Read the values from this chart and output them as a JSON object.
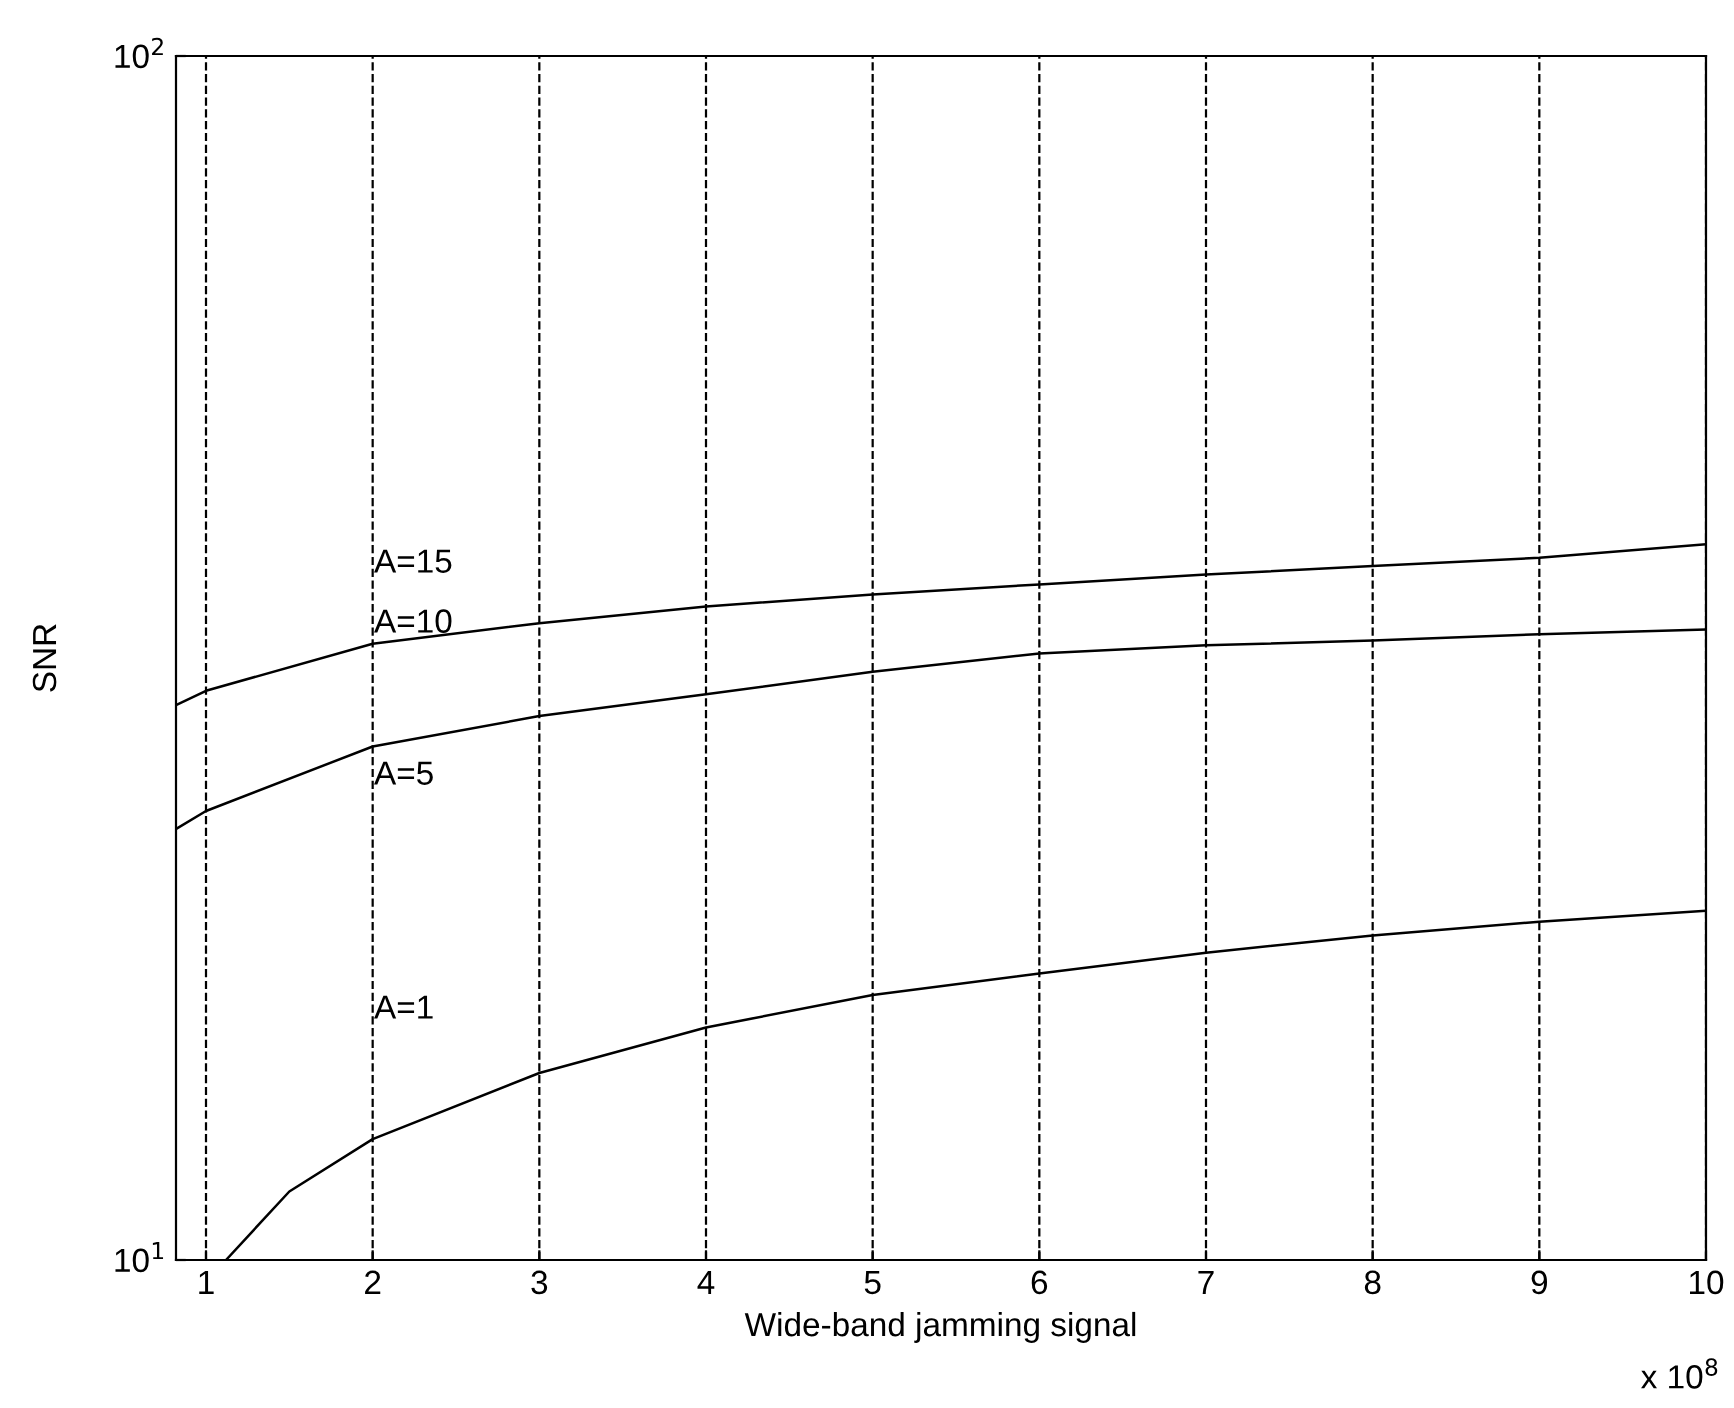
{
  "chart_data": {
    "type": "line",
    "xlabel": "Wide-band jamming signal",
    "ylabel": "SNR",
    "series": [
      {
        "color": "#000000",
        "x": [
          0.82,
          1,
          2,
          3,
          4,
          5,
          6,
          7,
          8,
          9,
          10
        ],
        "values": [
          28.9,
          29.7,
          32.5,
          33.8,
          34.9,
          35.7,
          36.4,
          37.1,
          37.7,
          38.3,
          39.3
        ]
      },
      {
        "color": "#000000",
        "x": [
          0.82,
          1,
          2,
          3,
          4,
          5,
          6,
          7,
          8,
          9,
          10
        ],
        "values": [
          22.8,
          23.6,
          26.7,
          28.3,
          29.5,
          30.8,
          31.9,
          32.4,
          32.7,
          33.1,
          33.4
        ]
      },
      {
        "color": "#000000",
        "x": [
          1.12,
          1.5,
          2,
          3,
          4,
          5,
          6,
          7,
          8,
          9,
          10
        ],
        "values": [
          10,
          11.4,
          12.6,
          14.3,
          15.6,
          16.6,
          17.3,
          18.0,
          18.6,
          19.1,
          19.5
        ]
      }
    ],
    "annotations": [
      "A=15",
      "A=10",
      "A=5",
      "A=1",
      "x 10$^{8}$"
    ],
    "log": "y",
    "xlim": [
      0.82,
      10
    ],
    "ylim": [
      10,
      100
    ],
    "xticks": [
      1,
      2,
      3,
      4,
      5,
      6,
      7,
      8,
      9,
      10
    ],
    "yticks": [
      {
        "value": 10,
        "label": "10$^{1}$"
      },
      {
        "value": 100,
        "label": "10$^{2}$"
      }
    ],
    "grid": "x",
    "line_style": "solid",
    "marker": "none",
    "legend": false
  }
}
